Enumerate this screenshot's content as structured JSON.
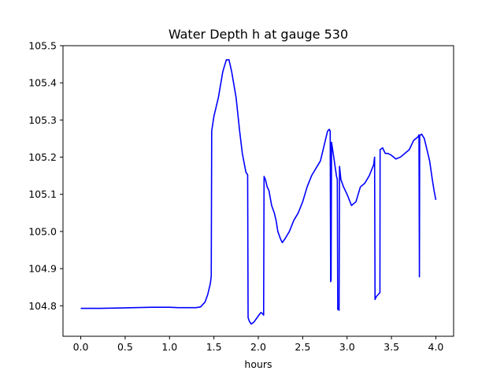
{
  "chart_data": {
    "type": "line",
    "title": "Water Depth h at gauge 530",
    "xlabel": "hours",
    "ylabel": "",
    "xlim": [
      -0.2,
      4.2
    ],
    "ylim": [
      104.718,
      105.5
    ],
    "grid": false,
    "x_ticks": [
      0.0,
      0.5,
      1.0,
      1.5,
      2.0,
      2.5,
      3.0,
      3.5,
      4.0
    ],
    "x_tick_labels": [
      "0.0",
      "0.5",
      "1.0",
      "1.5",
      "2.0",
      "2.5",
      "3.0",
      "3.5",
      "4.0"
    ],
    "y_ticks": [
      104.8,
      104.9,
      105.0,
      105.1,
      105.2,
      105.3,
      105.4,
      105.5
    ],
    "y_tick_labels": [
      "104.8",
      "104.9",
      "105.0",
      "105.1",
      "105.2",
      "105.3",
      "105.4",
      "105.5"
    ],
    "series": [
      {
        "color": "#0000ff",
        "points": [
          [
            0.0,
            104.793
          ],
          [
            0.2,
            104.793
          ],
          [
            0.4,
            104.794
          ],
          [
            0.6,
            104.795
          ],
          [
            0.8,
            104.796
          ],
          [
            1.0,
            104.796
          ],
          [
            1.1,
            104.795
          ],
          [
            1.3,
            104.795
          ],
          [
            1.35,
            104.797
          ],
          [
            1.4,
            104.81
          ],
          [
            1.43,
            104.83
          ],
          [
            1.46,
            104.86
          ],
          [
            1.47,
            104.88
          ],
          [
            1.475,
            105.27
          ],
          [
            1.5,
            105.31
          ],
          [
            1.55,
            105.36
          ],
          [
            1.6,
            105.43
          ],
          [
            1.64,
            105.462
          ],
          [
            1.67,
            105.462
          ],
          [
            1.7,
            105.43
          ],
          [
            1.75,
            105.36
          ],
          [
            1.79,
            105.27
          ],
          [
            1.82,
            105.21
          ],
          [
            1.86,
            105.16
          ],
          [
            1.88,
            105.152
          ],
          [
            1.885,
            104.768
          ],
          [
            1.9,
            104.758
          ],
          [
            1.92,
            104.751
          ],
          [
            1.95,
            104.756
          ],
          [
            1.98,
            104.766
          ],
          [
            2.01,
            104.776
          ],
          [
            2.03,
            104.782
          ],
          [
            2.05,
            104.778
          ],
          [
            2.06,
            104.775
          ],
          [
            2.065,
            105.148
          ],
          [
            2.08,
            105.14
          ],
          [
            2.1,
            105.12
          ],
          [
            2.12,
            105.11
          ],
          [
            2.15,
            105.07
          ],
          [
            2.18,
            105.05
          ],
          [
            2.2,
            105.03
          ],
          [
            2.22,
            105.0
          ],
          [
            2.25,
            104.98
          ],
          [
            2.27,
            104.97
          ],
          [
            2.3,
            104.98
          ],
          [
            2.35,
            105.0
          ],
          [
            2.4,
            105.03
          ],
          [
            2.45,
            105.05
          ],
          [
            2.5,
            105.08
          ],
          [
            2.55,
            105.12
          ],
          [
            2.6,
            105.15
          ],
          [
            2.65,
            105.17
          ],
          [
            2.7,
            105.19
          ],
          [
            2.75,
            105.24
          ],
          [
            2.78,
            105.27
          ],
          [
            2.8,
            105.275
          ],
          [
            2.81,
            105.27
          ],
          [
            2.815,
            104.865
          ],
          [
            2.82,
            104.87
          ],
          [
            2.825,
            105.24
          ],
          [
            2.85,
            105.2
          ],
          [
            2.88,
            105.15
          ],
          [
            2.89,
            105.14
          ],
          [
            2.895,
            104.79
          ],
          [
            2.9,
            104.795
          ],
          [
            2.91,
            104.788
          ],
          [
            2.915,
            105.175
          ],
          [
            2.93,
            105.14
          ],
          [
            2.96,
            105.12
          ],
          [
            3.0,
            105.1
          ],
          [
            3.05,
            105.07
          ],
          [
            3.1,
            105.08
          ],
          [
            3.15,
            105.12
          ],
          [
            3.2,
            105.13
          ],
          [
            3.25,
            105.15
          ],
          [
            3.3,
            105.18
          ],
          [
            3.31,
            105.2
          ],
          [
            3.315,
            104.817
          ],
          [
            3.33,
            104.825
          ],
          [
            3.36,
            104.833
          ],
          [
            3.37,
            104.835
          ],
          [
            3.372,
            105.22
          ],
          [
            3.4,
            105.225
          ],
          [
            3.43,
            105.21
          ],
          [
            3.46,
            105.21
          ],
          [
            3.5,
            105.205
          ],
          [
            3.55,
            105.195
          ],
          [
            3.6,
            105.2
          ],
          [
            3.65,
            105.21
          ],
          [
            3.7,
            105.22
          ],
          [
            3.75,
            105.245
          ],
          [
            3.8,
            105.255
          ],
          [
            3.81,
            105.26
          ],
          [
            3.815,
            104.878
          ],
          [
            3.818,
            105.258
          ],
          [
            3.84,
            105.262
          ],
          [
            3.87,
            105.25
          ],
          [
            3.9,
            105.22
          ],
          [
            3.93,
            105.19
          ],
          [
            3.96,
            105.14
          ],
          [
            3.98,
            105.11
          ],
          [
            4.0,
            105.085
          ]
        ]
      }
    ]
  }
}
